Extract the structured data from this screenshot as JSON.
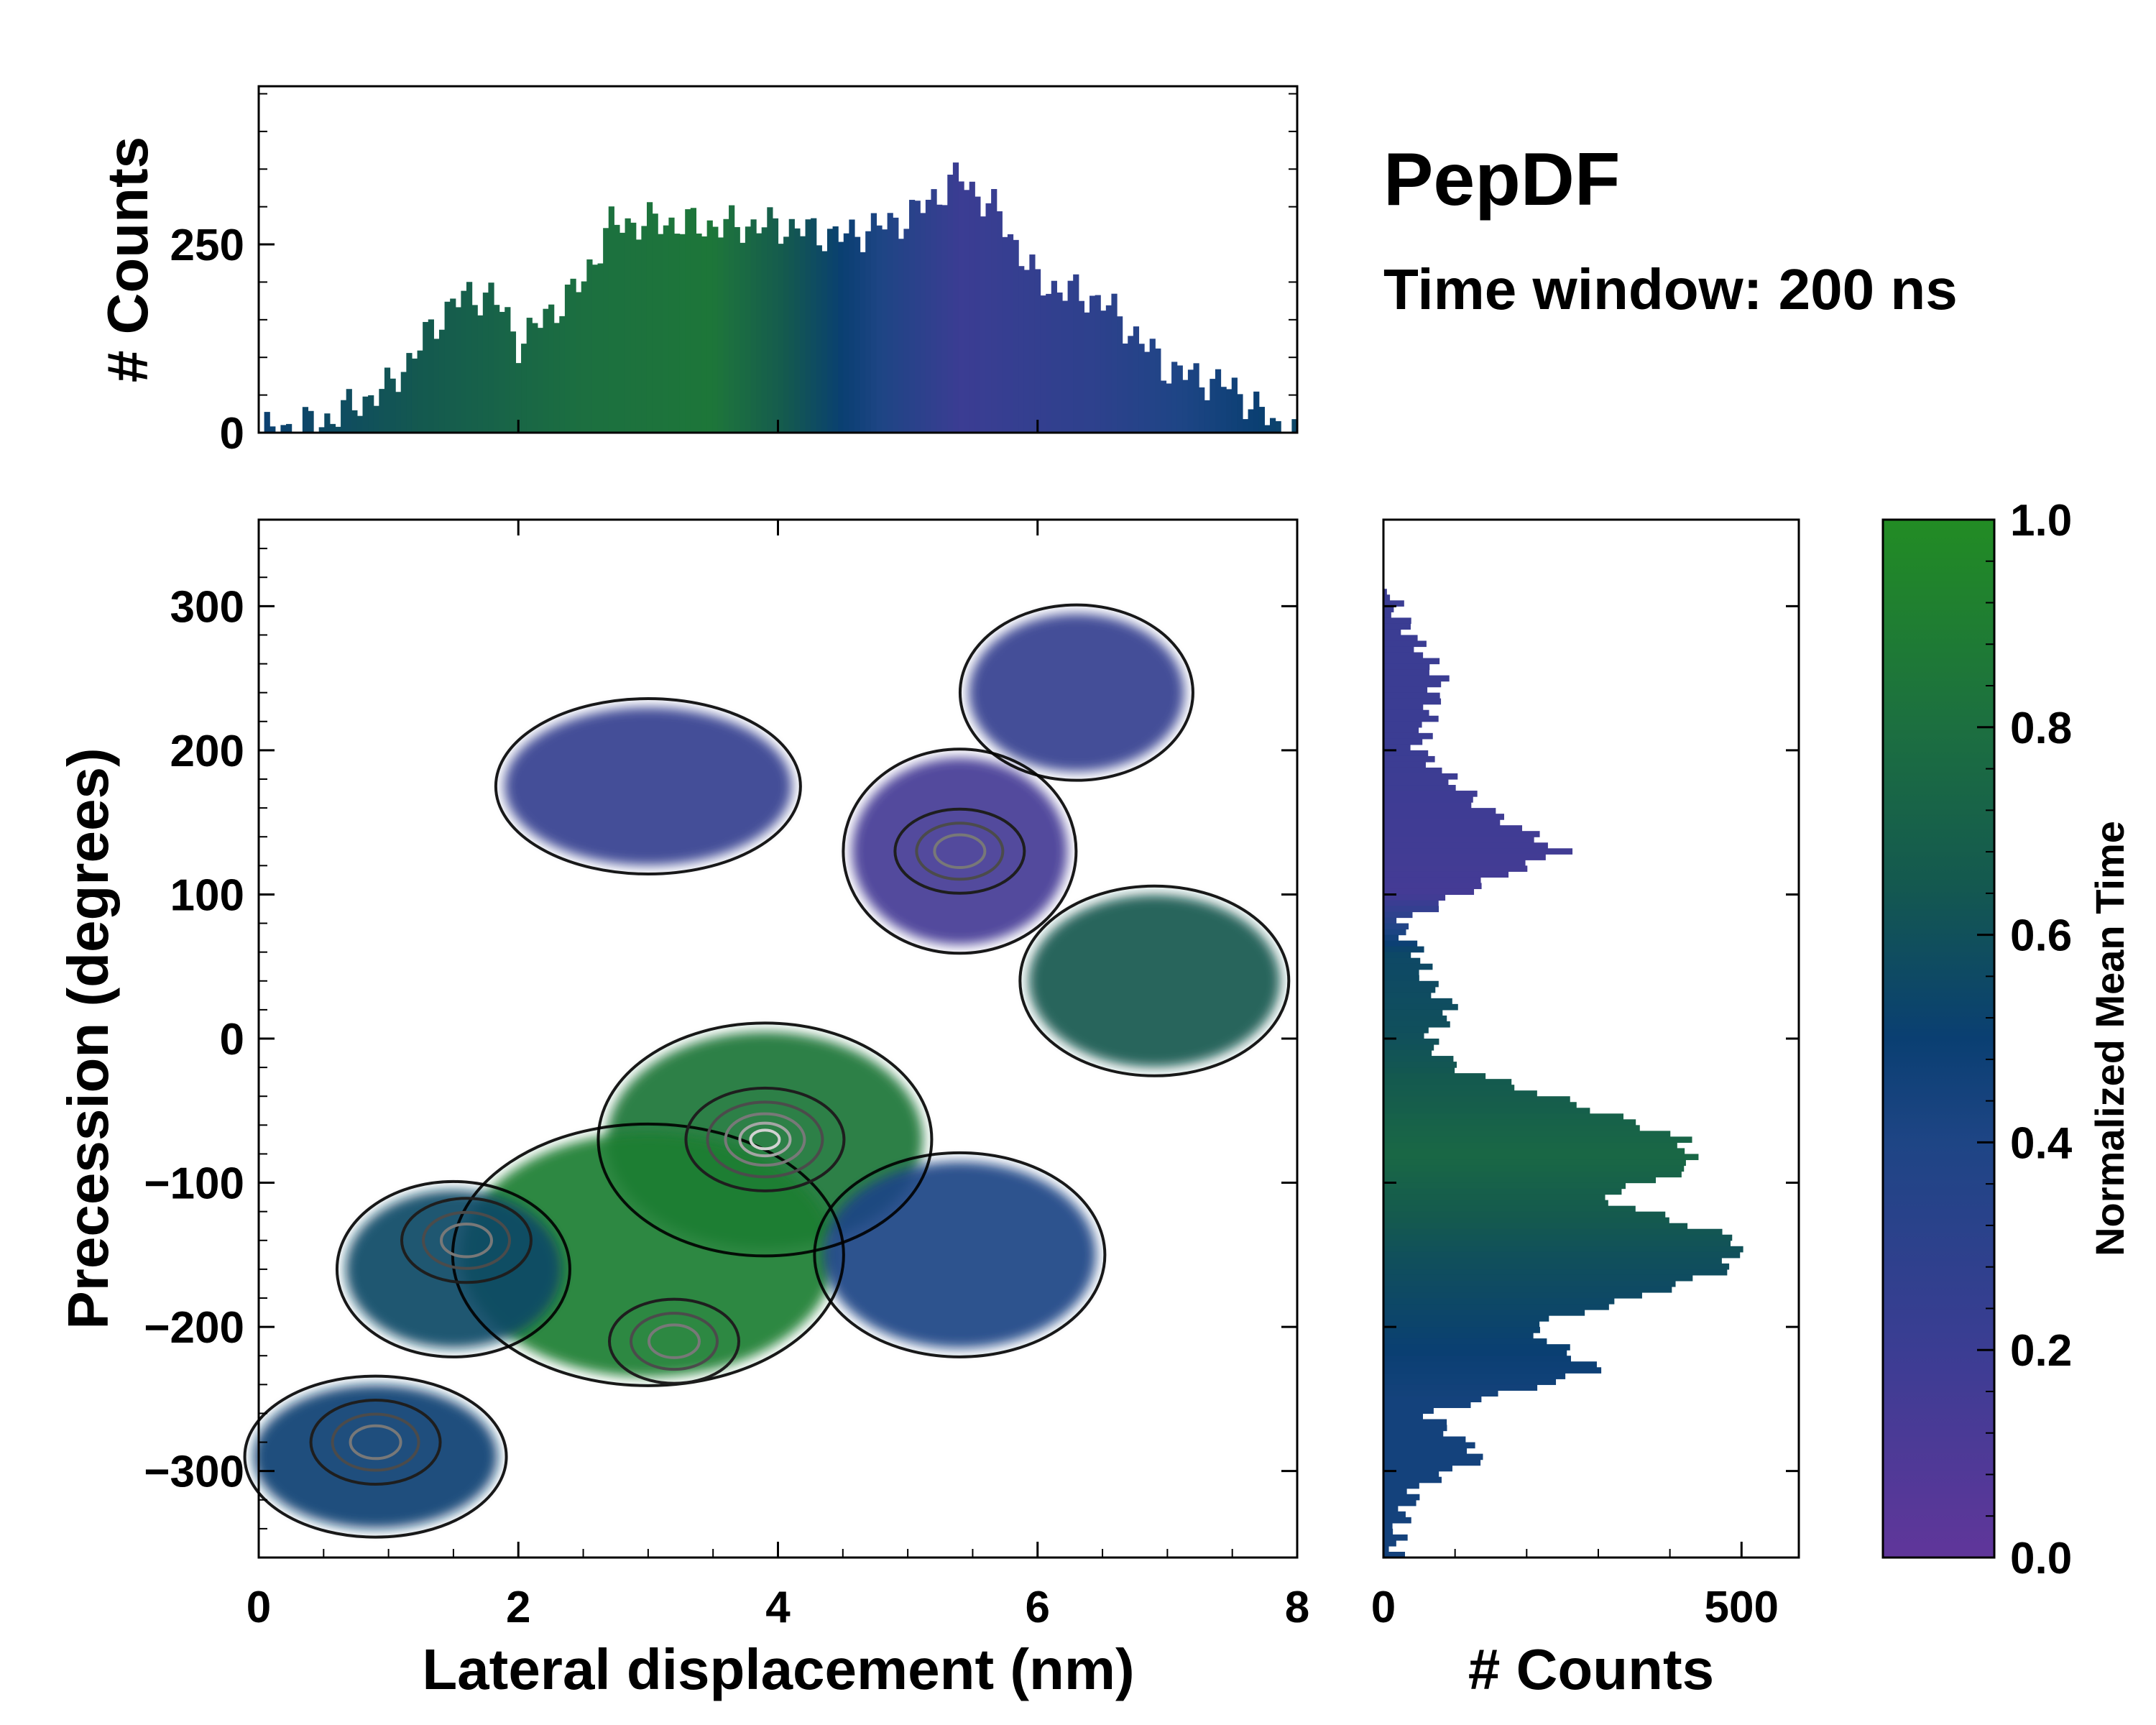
{
  "chart_data": [
    {
      "type": "heatmap",
      "panel": "joint",
      "xlabel": "Lateral displacement (nm)",
      "ylabel": "Precession (degrees)",
      "xlim": [
        0,
        8
      ],
      "ylim": [
        -360,
        360
      ],
      "xticks": [
        0,
        2,
        4,
        6,
        8
      ],
      "yticks": [
        -300,
        -200,
        -100,
        0,
        100,
        200,
        300
      ],
      "xtick_labels": [
        "0",
        "2",
        "4",
        "6",
        "8"
      ],
      "ytick_labels": [
        "−300",
        "−200",
        "−100",
        "0",
        "100",
        "200",
        "300"
      ],
      "color_value": "Normalized Mean Time",
      "occupied_region_clusters": [
        {
          "x": 5.4,
          "y": 130,
          "mean_time": 0.15
        },
        {
          "x": 3.0,
          "y": 175,
          "mean_time": 0.25
        },
        {
          "x": 6.3,
          "y": 240,
          "mean_time": 0.25
        },
        {
          "x": 6.9,
          "y": 40,
          "mean_time": 0.65
        },
        {
          "x": 3.9,
          "y": -70,
          "mean_time": 0.85
        },
        {
          "x": 3.0,
          "y": -150,
          "mean_time": 0.9
        },
        {
          "x": 5.4,
          "y": -150,
          "mean_time": 0.4
        },
        {
          "x": 1.5,
          "y": -160,
          "mean_time": 0.55
        },
        {
          "x": 0.9,
          "y": -290,
          "mean_time": 0.5
        }
      ],
      "contour_peaks": [
        {
          "x": 3.9,
          "y": -70
        },
        {
          "x": 5.4,
          "y": 130
        },
        {
          "x": 3.2,
          "y": -210
        },
        {
          "x": 1.6,
          "y": -140
        },
        {
          "x": 0.9,
          "y": -280
        }
      ]
    },
    {
      "type": "bar",
      "panel": "top-marginal",
      "ylabel": "# Counts",
      "ylim": [
        0,
        460
      ],
      "yticks": [
        0,
        250
      ],
      "ytick_labels": [
        "0",
        "250"
      ],
      "x_profile": [
        0,
        0.5,
        1.0,
        1.5,
        1.8,
        2.0,
        2.5,
        2.7,
        3.0,
        3.5,
        4.0,
        4.5,
        5.0,
        5.4,
        5.7,
        6.0,
        6.5,
        7.0,
        7.5,
        7.9
      ],
      "counts_profile": [
        0,
        15,
        60,
        175,
        185,
        120,
        200,
        275,
        280,
        275,
        275,
        260,
        285,
        340,
        290,
        200,
        175,
        85,
        60,
        0
      ]
    },
    {
      "type": "bar",
      "panel": "right-marginal",
      "orientation": "horizontal",
      "xlabel": "# Counts",
      "xlim": [
        0,
        580
      ],
      "xticks": [
        0,
        500
      ],
      "xtick_labels": [
        "0",
        "500"
      ],
      "y_profile": [
        300,
        250,
        200,
        160,
        130,
        110,
        80,
        60,
        40,
        20,
        0,
        -20,
        -50,
        -70,
        -90,
        -110,
        -140,
        -160,
        -180,
        -200,
        -230,
        -260,
        -290,
        -310,
        -340
      ],
      "counts_profile": [
        15,
        80,
        50,
        140,
        250,
        150,
        20,
        50,
        60,
        100,
        60,
        100,
        300,
        420,
        430,
        300,
        500,
        480,
        350,
        200,
        300,
        60,
        140,
        50,
        20
      ]
    }
  ],
  "colorbar": {
    "label": "Normalized Mean Time",
    "ticks": [
      "0.0",
      "0.2",
      "0.4",
      "0.6",
      "0.8",
      "1.0"
    ],
    "colors": [
      "#60369a",
      "#2e4a8c",
      "#0a3f72",
      "#16614f",
      "#1e7a35",
      "#228c24"
    ]
  },
  "titles": {
    "main": "PepDF",
    "sub": "Time window: 200 ns"
  }
}
